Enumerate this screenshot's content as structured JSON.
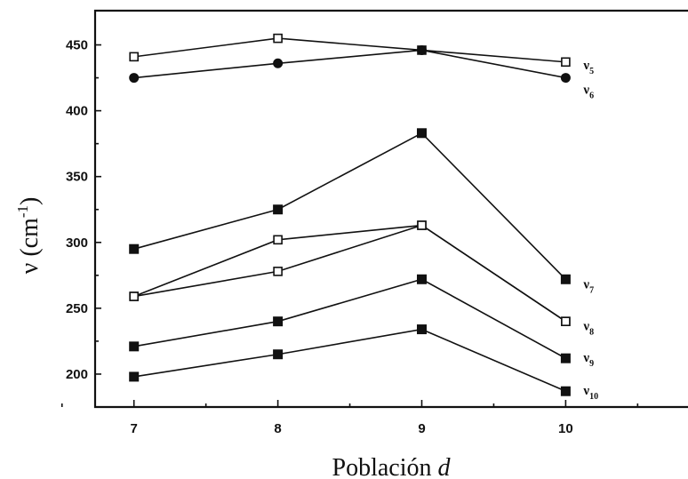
{
  "chart_data": {
    "type": "line",
    "title": "",
    "xlabel": "Población",
    "xlabel_var": "d",
    "ylabel": "ν (cm",
    "ylabel_sup": "-1",
    "ylabel_close": ")",
    "xlim": [
      6.73,
      10.85
    ],
    "ylim": [
      175,
      476
    ],
    "x": [
      7,
      8,
      9,
      10
    ],
    "x_ticks": [
      7,
      8,
      9,
      10
    ],
    "y_ticks": [
      200,
      250,
      300,
      350,
      400,
      450
    ],
    "grid": false,
    "series": [
      {
        "name": "ν",
        "name_sub": "5",
        "marker": "open-square",
        "values": [
          441,
          455,
          446,
          437
        ]
      },
      {
        "name": "ν",
        "name_sub": "6",
        "marker": "filled-circle",
        "values": [
          425,
          436,
          446,
          425
        ]
      },
      {
        "name": "ν",
        "name_sub": "7",
        "marker": "filled-square",
        "values": [
          295,
          325,
          383,
          272
        ]
      },
      {
        "name": "ν",
        "name_sub": "8",
        "marker": "open-square",
        "values": [
          259,
          302,
          313,
          240
        ]
      },
      {
        "name": "",
        "name_sub": "",
        "marker": "open-square",
        "values": [
          259,
          278,
          313,
          240
        ]
      },
      {
        "name": "ν",
        "name_sub": "9",
        "marker": "filled-square",
        "values": [
          221,
          240,
          272,
          212
        ]
      },
      {
        "name": "ν",
        "name_sub": "10",
        "marker": "filled-square",
        "values": [
          198,
          215,
          234,
          187
        ]
      }
    ]
  }
}
